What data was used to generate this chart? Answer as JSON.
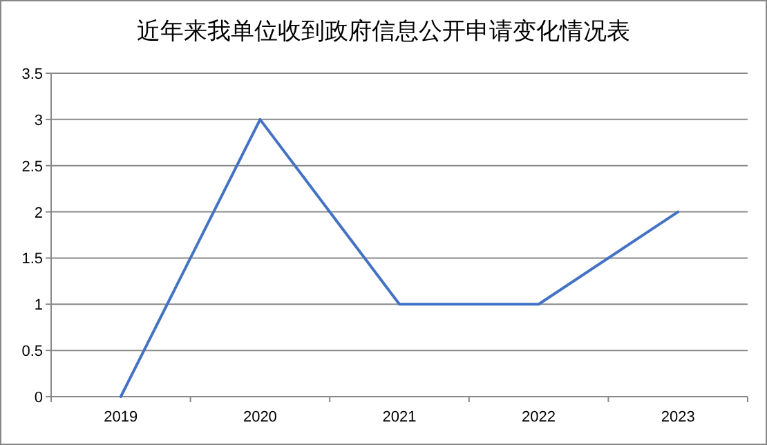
{
  "chart_data": {
    "type": "line",
    "title": "近年来我单位收到政府信息公开申请变化情况表",
    "categories": [
      "2019",
      "2020",
      "2021",
      "2022",
      "2023"
    ],
    "series": [
      {
        "color": "#4472c4",
        "values": [
          0,
          3,
          1,
          1,
          2
        ]
      }
    ],
    "ylim": [
      0,
      3.5
    ],
    "yticks": [
      0,
      0.5,
      1,
      1.5,
      2,
      2.5,
      3,
      3.5
    ],
    "grid": "y"
  }
}
